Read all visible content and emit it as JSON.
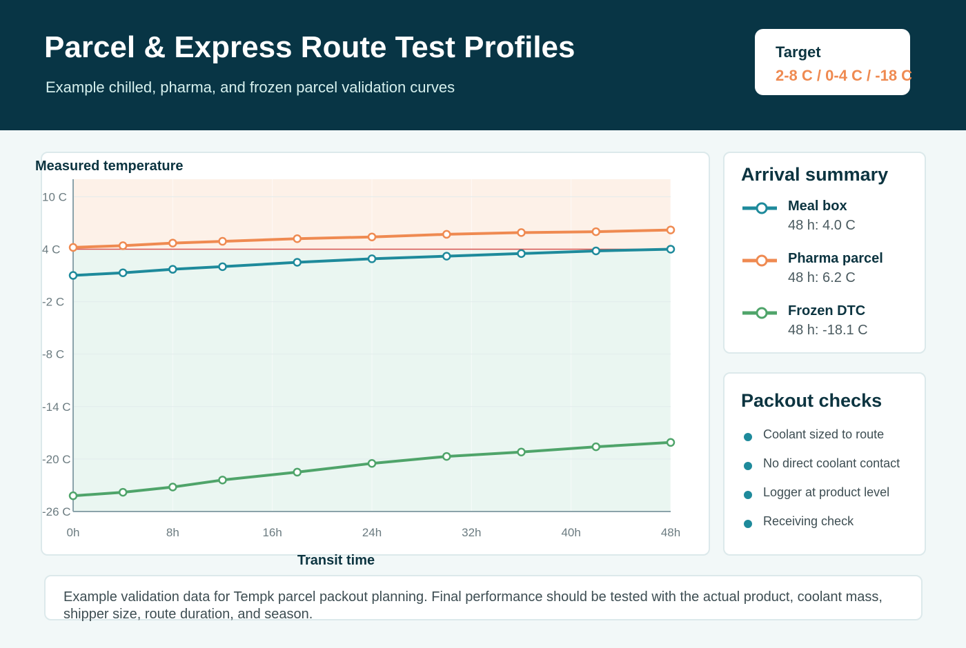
{
  "header": {
    "title": "Parcel & Express Route Test Profiles",
    "subtitle": "Example chilled, pharma, and frozen parcel validation curves",
    "target_label": "Target",
    "target_value": "2-8 C / 0-4 C / -18 C"
  },
  "chart_data": {
    "type": "line",
    "ylabel": "Measured temperature",
    "xlabel": "Transit time",
    "xlim": [
      0,
      48
    ],
    "ylim": [
      -26,
      12
    ],
    "x_ticks": [
      0,
      8,
      16,
      24,
      32,
      40,
      48
    ],
    "x_tick_labels": [
      "0h",
      "8h",
      "16h",
      "24h",
      "32h",
      "40h",
      "48h"
    ],
    "y_ticks": [
      10,
      4,
      -2,
      -8,
      -14,
      -20,
      -26
    ],
    "y_tick_labels": [
      "10 C",
      "4 C",
      "-2 C",
      "-8 C",
      "-14 C",
      "-20 C",
      "-26 C"
    ],
    "grid": true,
    "bands": [
      {
        "from": 4,
        "to": 12,
        "color": "#fdf1e8"
      },
      {
        "from": -26,
        "to": 4,
        "color": "#eaf6f1"
      }
    ],
    "reference_line": {
      "y": 4,
      "color": "#d9534f"
    },
    "series": [
      {
        "name": "Meal box",
        "color": "#1e8a9b",
        "x": [
          0,
          4,
          8,
          12,
          18,
          24,
          30,
          36,
          42,
          48
        ],
        "y": [
          1.0,
          1.3,
          1.7,
          2.0,
          2.5,
          2.9,
          3.2,
          3.5,
          3.8,
          4.0
        ]
      },
      {
        "name": "Pharma parcel",
        "color": "#ef8a51",
        "x": [
          0,
          4,
          8,
          12,
          18,
          24,
          30,
          36,
          42,
          48
        ],
        "y": [
          4.2,
          4.4,
          4.7,
          4.9,
          5.2,
          5.4,
          5.7,
          5.9,
          6.0,
          6.2
        ]
      },
      {
        "name": "Frozen DTC",
        "color": "#4fa46a",
        "x": [
          0,
          4,
          8,
          12,
          18,
          24,
          30,
          36,
          42,
          48
        ],
        "y": [
          -24.2,
          -23.8,
          -23.2,
          -22.4,
          -21.5,
          -20.5,
          -19.7,
          -19.2,
          -18.6,
          -18.1
        ]
      }
    ]
  },
  "summary": {
    "title": "Arrival summary",
    "items": [
      {
        "name": "Meal box",
        "value": "48 h: 4.0 C",
        "color": "#1e8a9b"
      },
      {
        "name": "Pharma parcel",
        "value": "48 h: 6.2 C",
        "color": "#ef8a51"
      },
      {
        "name": "Frozen DTC",
        "value": "48 h: -18.1 C",
        "color": "#4fa46a"
      }
    ]
  },
  "checks": {
    "title": "Packout checks",
    "items": [
      "Coolant sized to route",
      "No direct coolant contact",
      "Logger at product level",
      "Receiving check"
    ]
  },
  "note": {
    "text": "Example validation data for Tempk parcel packout planning. Final performance should be tested with the actual product, coolant mass, shipper size, route duration, and season."
  }
}
